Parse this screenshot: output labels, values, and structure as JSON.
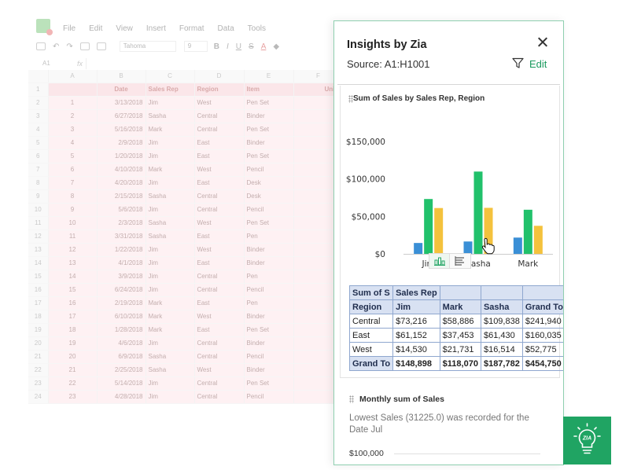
{
  "spreadsheet": {
    "menu": [
      "File",
      "Edit",
      "View",
      "Insert",
      "Format",
      "Data",
      "Tools"
    ],
    "font_name": "Tahoma",
    "font_size": "9",
    "cell_ref": "A1",
    "fx_label": "fx",
    "column_headers": [
      "A",
      "B",
      "C",
      "D",
      "E",
      "F"
    ],
    "header_row": [
      "",
      "Date",
      "Sales Rep",
      "Region",
      "Item",
      "Units"
    ],
    "rows": [
      [
        "1",
        "3/13/2018",
        "Jim",
        "West",
        "Pen Set"
      ],
      [
        "2",
        "6/27/2018",
        "Sasha",
        "Central",
        "Binder"
      ],
      [
        "3",
        "5/16/2018",
        "Mark",
        "Central",
        "Pen Set"
      ],
      [
        "4",
        "2/9/2018",
        "Jim",
        "East",
        "Binder"
      ],
      [
        "5",
        "1/20/2018",
        "Jim",
        "East",
        "Pen Set"
      ],
      [
        "6",
        "4/10/2018",
        "Mark",
        "West",
        "Pencil"
      ],
      [
        "7",
        "4/20/2018",
        "Jim",
        "East",
        "Desk"
      ],
      [
        "8",
        "2/15/2018",
        "Sasha",
        "Central",
        "Desk"
      ],
      [
        "9",
        "5/6/2018",
        "Jim",
        "Central",
        "Pencil"
      ],
      [
        "10",
        "2/3/2018",
        "Sasha",
        "West",
        "Pen Set"
      ],
      [
        "11",
        "3/31/2018",
        "Sasha",
        "East",
        "Pen"
      ],
      [
        "12",
        "1/22/2018",
        "Jim",
        "West",
        "Binder"
      ],
      [
        "13",
        "4/1/2018",
        "Jim",
        "East",
        "Binder"
      ],
      [
        "14",
        "3/9/2018",
        "Jim",
        "Central",
        "Pen"
      ],
      [
        "15",
        "6/24/2018",
        "Jim",
        "Central",
        "Pencil"
      ],
      [
        "16",
        "2/19/2018",
        "Mark",
        "East",
        "Pen"
      ],
      [
        "17",
        "6/10/2018",
        "Mark",
        "West",
        "Binder"
      ],
      [
        "18",
        "1/28/2018",
        "Mark",
        "East",
        "Pen Set"
      ],
      [
        "19",
        "4/6/2018",
        "Jim",
        "Central",
        "Binder"
      ],
      [
        "20",
        "6/9/2018",
        "Sasha",
        "Central",
        "Pencil"
      ],
      [
        "21",
        "2/25/2018",
        "Sasha",
        "West",
        "Binder"
      ],
      [
        "22",
        "5/14/2018",
        "Jim",
        "Central",
        "Pen Set"
      ],
      [
        "23",
        "4/28/2018",
        "Jim",
        "Central",
        "Pencil"
      ]
    ]
  },
  "panel": {
    "title": "Insights by Zia",
    "source": "Source: A1:H1001",
    "edit_label": "Edit",
    "card1_title": "Sum of Sales by Sales Rep, Region",
    "card2_title": "Monthly sum of Sales",
    "card2_text": "Lowest Sales (31225.0) was recorded for the Date Jul",
    "card2_axis_tick": "$100,000"
  },
  "pivot": {
    "corner": "Sum of S",
    "col_field": "Sales Rep",
    "row_field": "Region",
    "columns": [
      "Jim",
      "Mark",
      "Sasha",
      "Grand To"
    ],
    "rows": [
      {
        "label": "Central",
        "values": [
          "$73,216",
          "$58,886",
          "$109,838",
          "$241,940"
        ]
      },
      {
        "label": "East",
        "values": [
          "$61,152",
          "$37,453",
          "$61,430",
          "$160,035"
        ]
      },
      {
        "label": "West",
        "values": [
          "$14,530",
          "$21,731",
          "$16,514",
          "$52,775"
        ]
      }
    ],
    "total": {
      "label": "Grand To",
      "values": [
        "$148,898",
        "$118,070",
        "$187,782",
        "$454,750"
      ]
    }
  },
  "chart_data": {
    "type": "bar",
    "title": "Sum of Sales by Sales Rep, Region",
    "categories": [
      "Jim",
      "Sasha",
      "Mark"
    ],
    "series": [
      {
        "values": [
          14530,
          16514,
          21731
        ],
        "color": "#3a8fd6"
      },
      {
        "values": [
          73216,
          109838,
          58886
        ],
        "color": "#21c16b"
      },
      {
        "values": [
          61152,
          61430,
          37453
        ],
        "color": "#f4c23d"
      }
    ],
    "yticks": [
      "$0",
      "$50,000",
      "$100,000",
      "$150,000"
    ],
    "ylim": [
      0,
      150000
    ],
    "grid": false,
    "legend": "none"
  },
  "colors": {
    "accent": "#20a463",
    "edit": "#1a9a5e"
  }
}
